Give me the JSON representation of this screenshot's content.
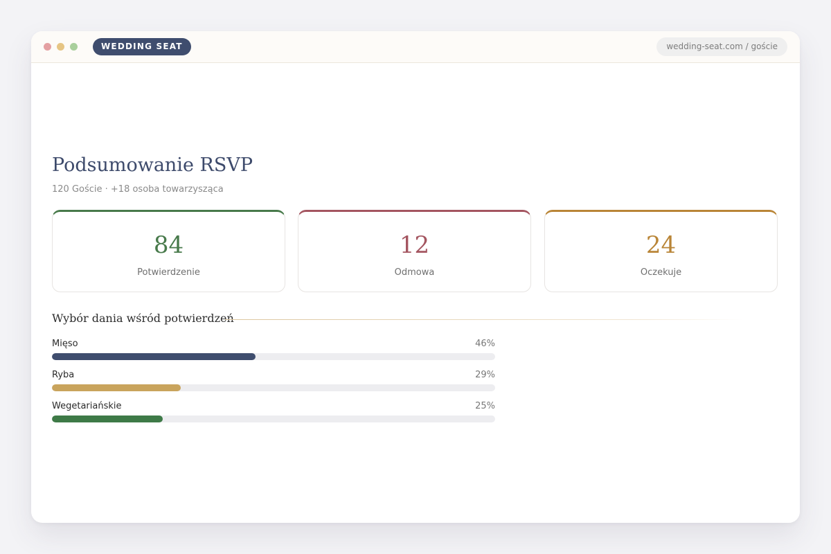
{
  "browser": {
    "brand": "WEDDING SEAT",
    "url": "wedding-seat.com / goście"
  },
  "summary": {
    "title": "Podsumowanie RSVP",
    "subtitle": "120 Goście · +18 osoba towarzysząca"
  },
  "stats": [
    {
      "value": "84",
      "label": "Potwierdzenie",
      "color": "#487a4b"
    },
    {
      "value": "12",
      "label": "Odmowa",
      "color": "#a45560"
    },
    {
      "value": "24",
      "label": "Oczekuje",
      "color": "#b98537"
    }
  ],
  "meals": {
    "title": "Wybór dania wśród potwierdzeń",
    "items": [
      {
        "label": "Mięso",
        "percent_text": "46%",
        "percent": 46,
        "color": "#3f4d6e"
      },
      {
        "label": "Ryba",
        "percent_text": "29%",
        "percent": 29,
        "color": "#c9a45d"
      },
      {
        "label": "Wegetariańskie",
        "percent_text": "25%",
        "percent": 25,
        "color": "#3e7a47"
      }
    ]
  }
}
